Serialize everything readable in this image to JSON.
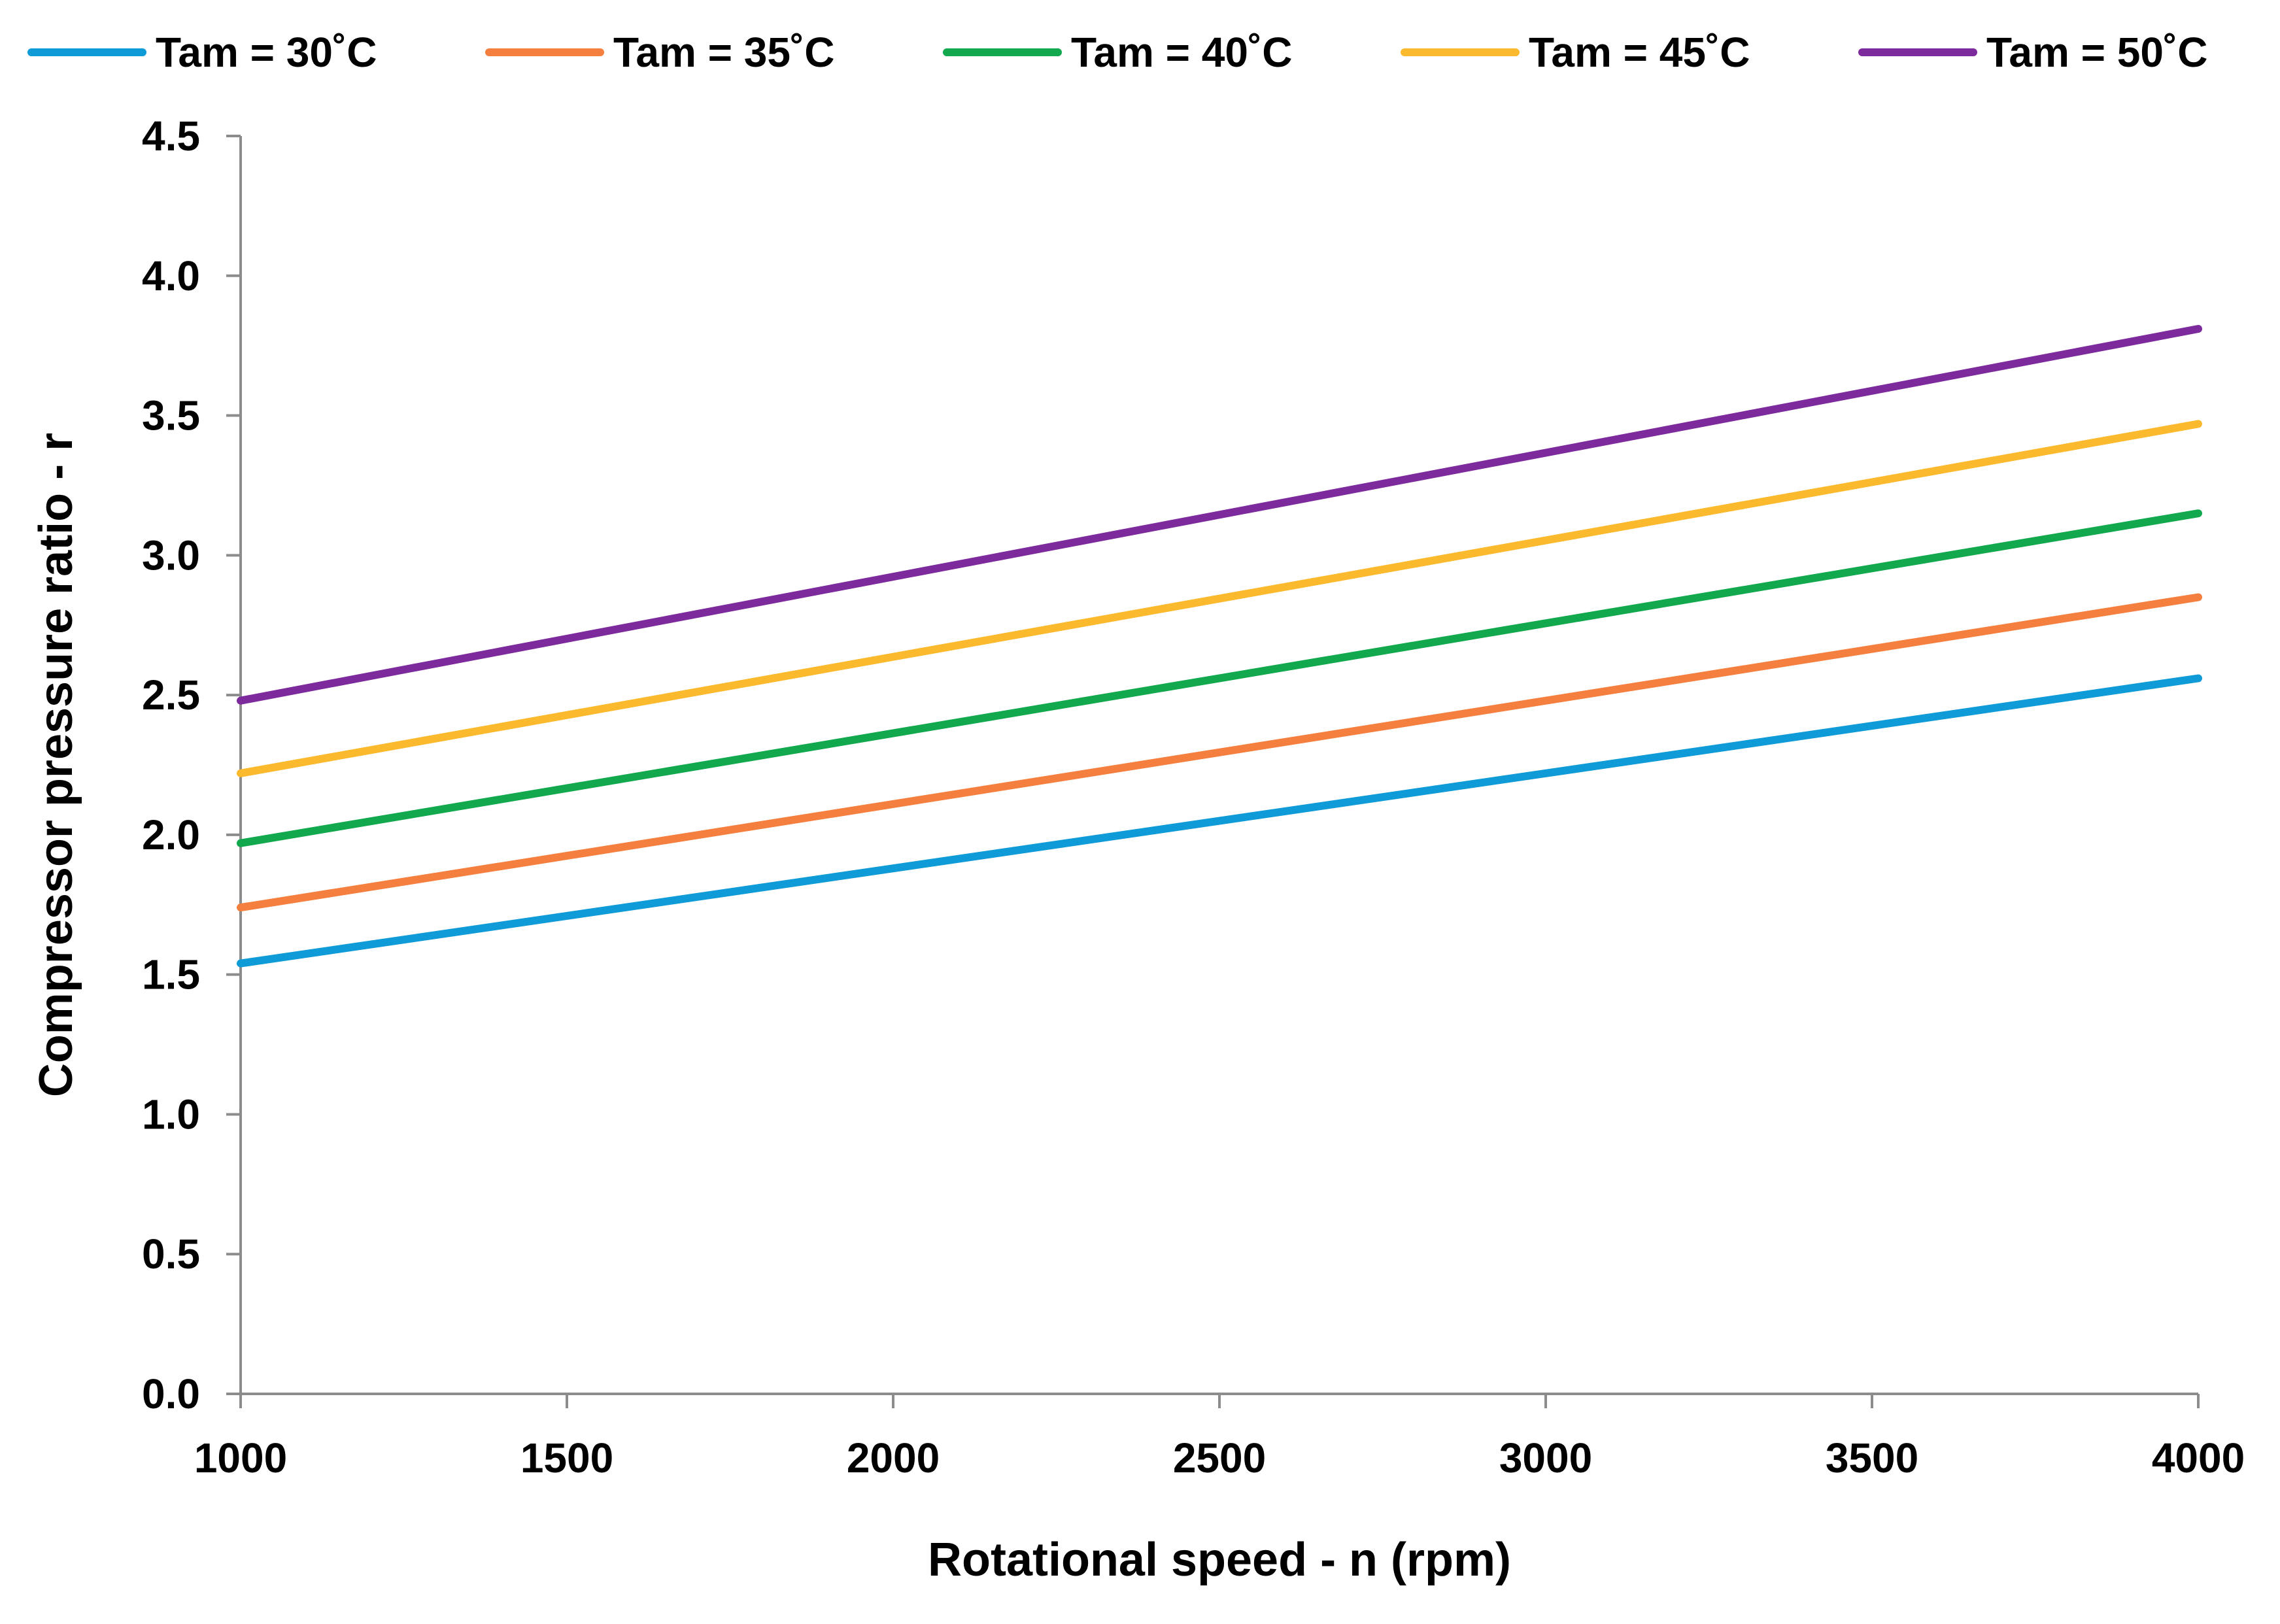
{
  "chart_data": {
    "type": "line",
    "title": "",
    "xlabel": "Rotational speed - n (rpm)",
    "ylabel": "Compressor pressure ratio - r",
    "xlim": [
      1000,
      4000
    ],
    "ylim": [
      0.0,
      4.5
    ],
    "xticks": [
      1000,
      1500,
      2000,
      2500,
      3000,
      3500,
      4000
    ],
    "xtick_labels": [
      "1000",
      "1500",
      "2000",
      "2500",
      "3000",
      "3500",
      "4000"
    ],
    "yticks": [
      0.0,
      0.5,
      1.0,
      1.5,
      2.0,
      2.5,
      3.0,
      3.5,
      4.0,
      4.5
    ],
    "ytick_labels": [
      "0.0",
      "0.5",
      "1.0",
      "1.5",
      "2.0",
      "2.5",
      "3.0",
      "3.5",
      "4.0",
      "4.5"
    ],
    "grid": false,
    "legend_position": "top",
    "series": [
      {
        "name": "Tam = 30˚C",
        "color": "#0F9BD7",
        "x": [
          1000,
          4000
        ],
        "y": [
          1.54,
          2.56
        ]
      },
      {
        "name": "Tam = 35˚C",
        "color": "#F47F3E",
        "x": [
          1000,
          4000
        ],
        "y": [
          1.74,
          2.85
        ]
      },
      {
        "name": "Tam = 40˚C",
        "color": "#11A84E",
        "x": [
          1000,
          4000
        ],
        "y": [
          1.97,
          3.15
        ]
      },
      {
        "name": "Tam = 45˚C",
        "color": "#FBBA2E",
        "x": [
          1000,
          4000
        ],
        "y": [
          2.22,
          3.47
        ]
      },
      {
        "name": "Tam = 50˚C",
        "color": "#7D2A9C",
        "x": [
          1000,
          4000
        ],
        "y": [
          2.48,
          3.81
        ]
      }
    ]
  }
}
